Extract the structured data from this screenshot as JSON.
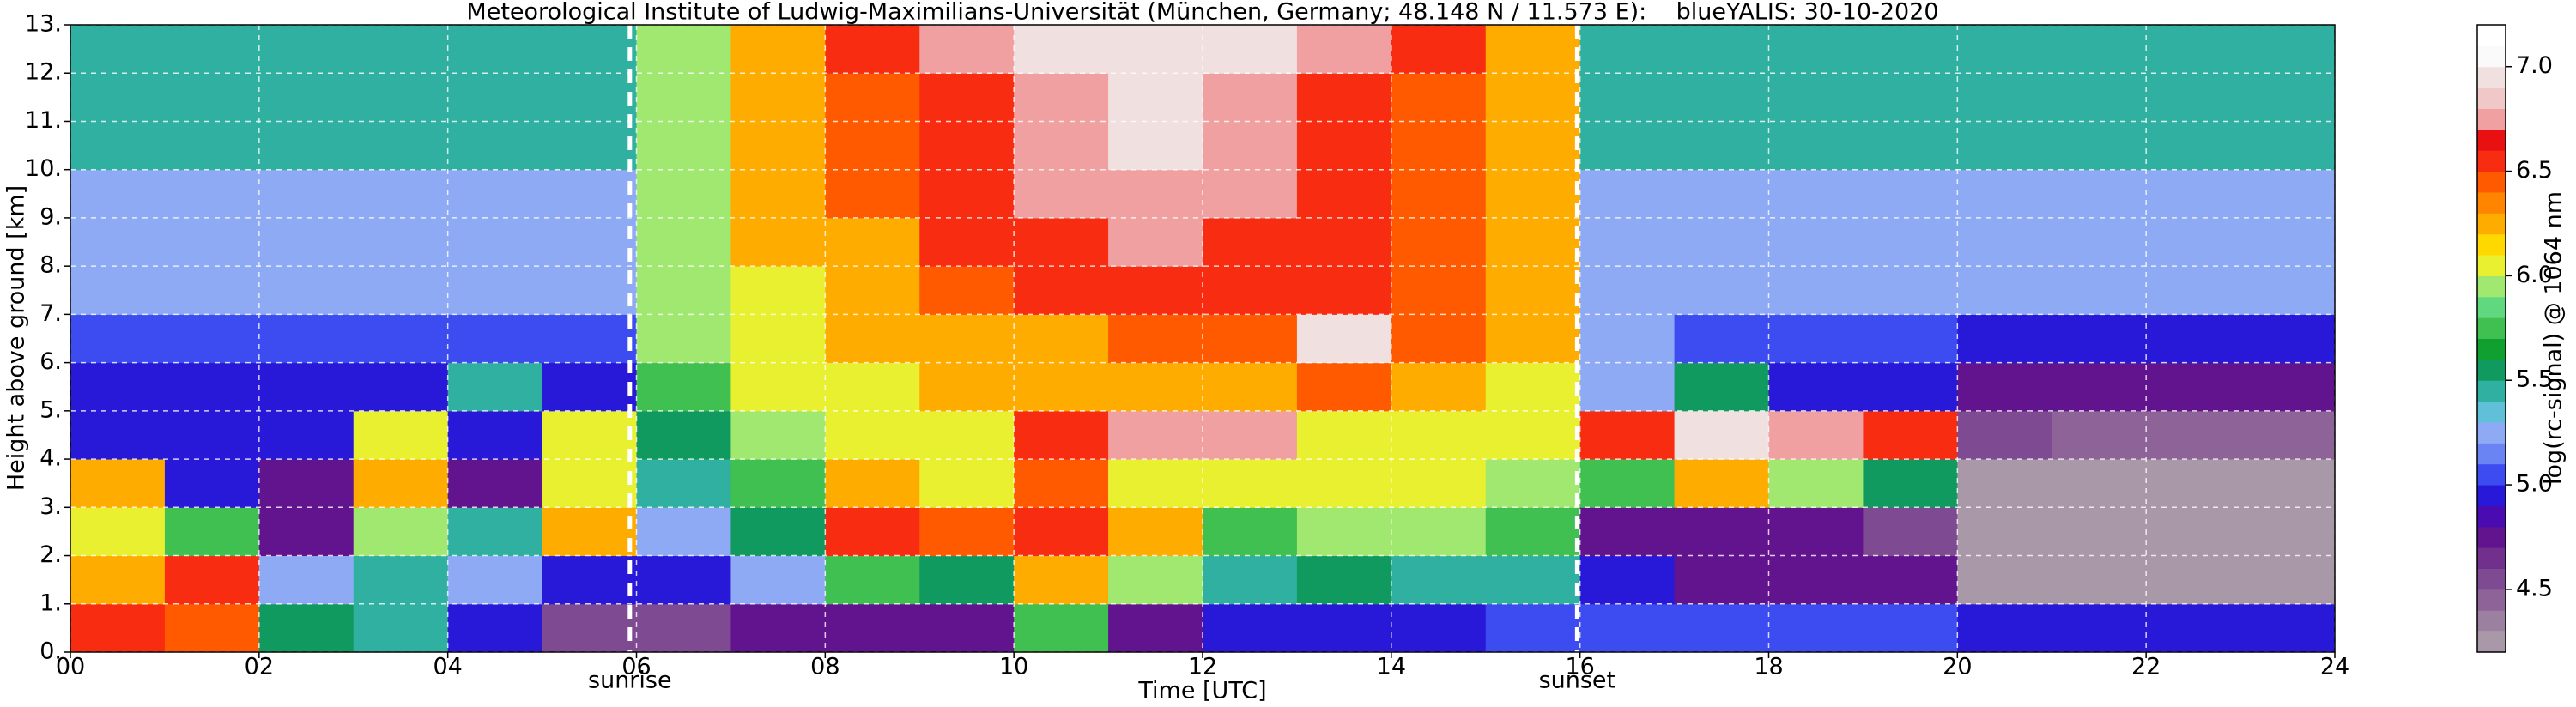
{
  "chart_data": {
    "type": "heatmap",
    "title": "Meteorological Institute of Ludwig-Maximilians-Universität (München, Germany; 48.148 N / 11.573 E):    blueYALIS: 30-10-2020",
    "xlabel": "Time [UTC]",
    "ylabel": "Height above ground [km]",
    "xlim": [
      0,
      24
    ],
    "xticks": [
      {
        "value": 0,
        "label": "00"
      },
      {
        "value": 2,
        "label": "02"
      },
      {
        "value": 4,
        "label": "04"
      },
      {
        "value": 6,
        "label": "06"
      },
      {
        "value": 8,
        "label": "08"
      },
      {
        "value": 10,
        "label": "10"
      },
      {
        "value": 12,
        "label": "12"
      },
      {
        "value": 14,
        "label": "14"
      },
      {
        "value": 16,
        "label": "16"
      },
      {
        "value": 18,
        "label": "18"
      },
      {
        "value": 20,
        "label": "20"
      },
      {
        "value": 22,
        "label": "22"
      },
      {
        "value": 24,
        "label": "24"
      }
    ],
    "ylim": [
      0,
      13
    ],
    "yticks": [
      {
        "value": 0,
        "label": "0."
      },
      {
        "value": 1,
        "label": "1."
      },
      {
        "value": 2,
        "label": "2."
      },
      {
        "value": 3,
        "label": "3."
      },
      {
        "value": 4,
        "label": "4."
      },
      {
        "value": 5,
        "label": "5."
      },
      {
        "value": 6,
        "label": "6."
      },
      {
        "value": 7,
        "label": "7."
      },
      {
        "value": 8,
        "label": "8."
      },
      {
        "value": 9,
        "label": "9."
      },
      {
        "value": 10,
        "label": "10."
      },
      {
        "value": 11,
        "label": "11."
      },
      {
        "value": 12,
        "label": "12."
      },
      {
        "value": 13,
        "label": "13."
      }
    ],
    "grid": true,
    "grid_color": "#ffffff",
    "background": "#000000",
    "z": [
      [
        6.5,
        6.4,
        5.6,
        5.5,
        5.0,
        4.6,
        4.6,
        4.7,
        4.8,
        4.7,
        5.8,
        4.8,
        4.9,
        5.0,
        5.0,
        5.1,
        5.1,
        5.1,
        5.1,
        5.1,
        5.0,
        5.0,
        5.0,
        5.0
      ],
      [
        6.3,
        6.6,
        5.2,
        5.4,
        5.3,
        4.9,
        4.9,
        5.2,
        5.8,
        5.6,
        6.3,
        5.9,
        5.5,
        5.6,
        5.5,
        5.4,
        4.9,
        4.8,
        4.8,
        4.7,
        4.2,
        4.2,
        4.2,
        4.2
      ],
      [
        6.0,
        5.8,
        4.8,
        5.9,
        5.4,
        6.3,
        5.3,
        5.6,
        6.5,
        6.4,
        6.5,
        6.2,
        5.8,
        5.9,
        5.9,
        5.8,
        4.7,
        4.8,
        4.8,
        4.6,
        4.2,
        4.2,
        4.2,
        4.2
      ],
      [
        6.2,
        4.9,
        4.8,
        6.3,
        4.8,
        6.1,
        5.5,
        5.8,
        6.3,
        6.0,
        6.4,
        6.1,
        6.0,
        6.0,
        6.0,
        5.9,
        5.8,
        6.2,
        5.9,
        5.6,
        4.3,
        4.2,
        4.2,
        4.2
      ],
      [
        4.9,
        4.9,
        4.9,
        6.0,
        4.9,
        6.0,
        5.6,
        5.9,
        6.0,
        6.1,
        6.6,
        6.7,
        6.8,
        6.1,
        6.1,
        6.0,
        6.6,
        6.9,
        6.8,
        6.6,
        4.6,
        4.5,
        4.5,
        4.5
      ],
      [
        5.0,
        5.0,
        5.0,
        5.0,
        5.5,
        5.0,
        5.8,
        6.0,
        6.1,
        6.2,
        6.2,
        6.2,
        6.3,
        6.4,
        6.2,
        6.1,
        5.2,
        5.6,
        5.0,
        5.0,
        4.8,
        4.8,
        4.8,
        4.8
      ],
      [
        5.1,
        5.1,
        5.1,
        5.1,
        5.1,
        5.1,
        5.9,
        6.1,
        6.2,
        6.3,
        6.3,
        6.4,
        6.4,
        7.0,
        6.4,
        6.2,
        5.2,
        5.1,
        5.1,
        5.1,
        5.0,
        5.0,
        5.0,
        5.0
      ],
      [
        5.2,
        5.2,
        5.2,
        5.2,
        5.2,
        5.2,
        5.9,
        6.1,
        6.2,
        6.4,
        6.5,
        6.5,
        6.5,
        6.5,
        6.4,
        6.2,
        5.3,
        5.2,
        5.2,
        5.2,
        5.2,
        5.2,
        5.2,
        5.2
      ],
      [
        5.3,
        5.3,
        5.3,
        5.3,
        5.3,
        5.3,
        5.9,
        6.2,
        6.3,
        6.5,
        6.6,
        6.7,
        6.6,
        6.5,
        6.4,
        6.2,
        5.3,
        5.3,
        5.3,
        5.3,
        5.3,
        5.3,
        5.3,
        5.3
      ],
      [
        5.3,
        5.3,
        5.3,
        5.3,
        5.3,
        5.3,
        5.9,
        6.2,
        6.4,
        6.6,
        6.7,
        6.8,
        6.7,
        6.6,
        6.4,
        6.2,
        5.3,
        5.3,
        5.3,
        5.3,
        5.3,
        5.3,
        5.3,
        5.3
      ],
      [
        5.4,
        5.4,
        5.4,
        5.4,
        5.4,
        5.4,
        5.9,
        6.2,
        6.4,
        6.6,
        6.8,
        6.9,
        6.8,
        6.6,
        6.4,
        6.2,
        5.4,
        5.4,
        5.4,
        5.4,
        5.4,
        5.4,
        5.4,
        5.4
      ],
      [
        5.4,
        5.4,
        5.4,
        5.4,
        5.4,
        5.4,
        5.9,
        6.2,
        6.4,
        6.6,
        6.8,
        6.9,
        6.8,
        6.6,
        6.4,
        6.2,
        5.4,
        5.4,
        5.4,
        5.4,
        5.4,
        5.4,
        5.4,
        5.4
      ],
      [
        5.4,
        5.4,
        5.4,
        5.4,
        5.4,
        5.4,
        5.9,
        6.3,
        6.5,
        6.7,
        6.9,
        7.0,
        6.9,
        6.7,
        6.5,
        6.3,
        5.4,
        5.4,
        5.4,
        5.4,
        5.4,
        5.4,
        5.4,
        5.4
      ]
    ],
    "colorbar": {
      "label": "log(rc-signal) @ 1064 nm",
      "zlim": [
        4.2,
        7.2
      ],
      "ticks": [
        4.5,
        {
          "value": 5,
          "label": "5.0"
        },
        5.5,
        {
          "value": 6,
          "label": "6.0"
        },
        6.5,
        {
          "value": 7,
          "label": "7.0"
        }
      ],
      "colors": [
        "#a898a8",
        "#9c80a0",
        "#8e6498",
        "#7e4a92",
        "#70308c",
        "#62148e",
        "#4a0cb0",
        "#2818d8",
        "#3c4cf0",
        "#6a84f4",
        "#8eaaf4",
        "#60c0d8",
        "#30b0a0",
        "#109a60",
        "#10a030",
        "#40c050",
        "#60d880",
        "#a0e870",
        "#e8f030",
        "#ffd800",
        "#ffac00",
        "#ff8400",
        "#ff5a00",
        "#f82c10",
        "#e81010",
        "#f0a0a0",
        "#f0c8c8",
        "#f0e0e0",
        "#fafafa",
        "#ffffff"
      ]
    },
    "annotations": [
      {
        "x": 5.93,
        "label": "sunrise",
        "color": "#ffffff"
      },
      {
        "x": 15.97,
        "label": "sunset",
        "color": "#ffffff"
      }
    ]
  }
}
